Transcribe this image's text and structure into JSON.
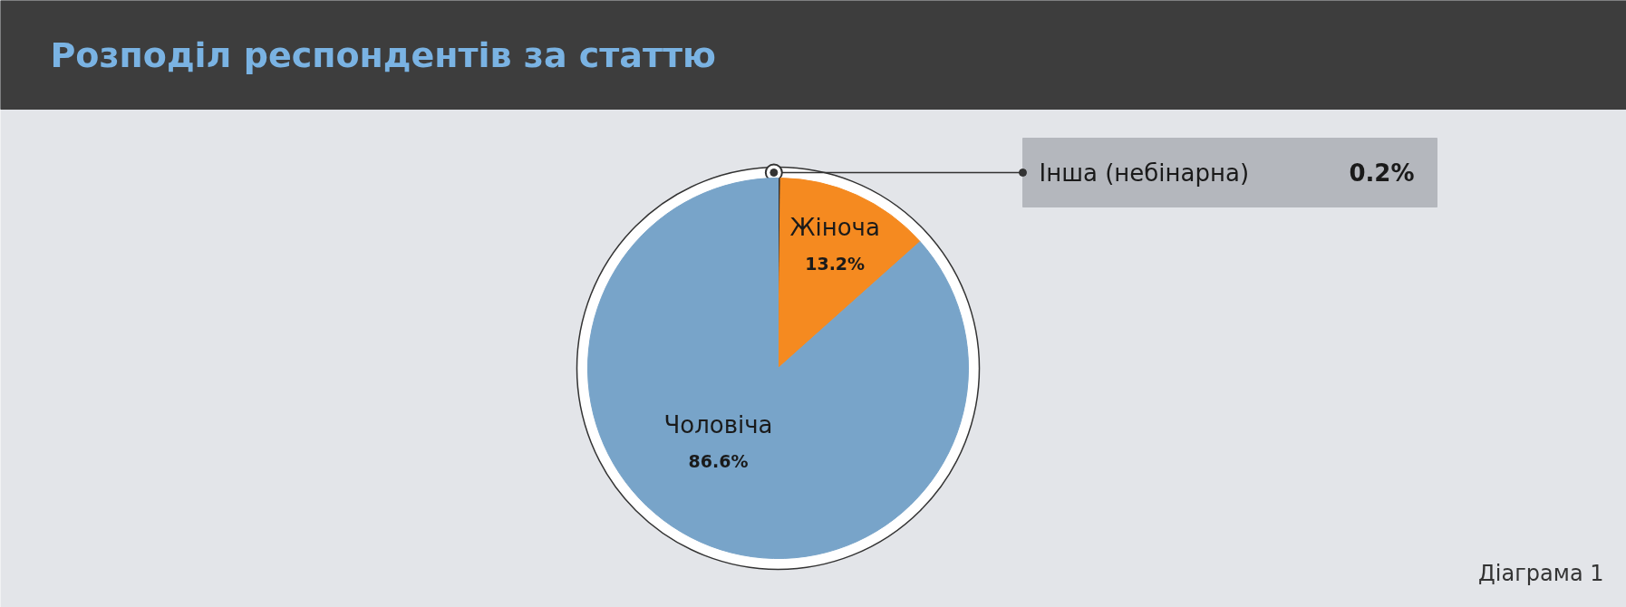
{
  "chart_data": {
    "type": "pie",
    "title": "Розподіл респондентів за статтю",
    "categories": [
      "Інша (небінарна)",
      "Жіноча",
      "Чоловіча"
    ],
    "values": [
      0.2,
      13.2,
      86.6
    ],
    "colors": [
      "#333333",
      "#f58a20",
      "#78a4c9"
    ],
    "value_labels": [
      "0.2%",
      "13.2%",
      "86.6%"
    ],
    "annotations": [
      "Діаграма 1"
    ]
  }
}
